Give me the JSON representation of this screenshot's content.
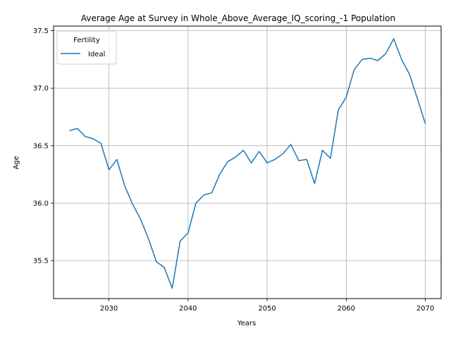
{
  "chart_data": {
    "type": "line",
    "title": "Average Age at Survey in Whole_Above_Average_IQ_scoring_-1 Population",
    "xlabel": "Years",
    "ylabel": "Age",
    "xlim": [
      2023,
      2072
    ],
    "ylim": [
      35.17,
      37.54
    ],
    "xticks": [
      2030,
      2040,
      2050,
      2060,
      2070
    ],
    "xtick_labels": [
      "2030",
      "2040",
      "2050",
      "2060",
      "2070"
    ],
    "yticks": [
      35.5,
      36.0,
      36.5,
      37.0,
      37.5
    ],
    "ytick_labels": [
      "35.5",
      "36.0",
      "36.5",
      "37.0",
      "37.5"
    ],
    "grid": true,
    "legend": {
      "title": "Fertility",
      "placement": "top-left"
    },
    "series": [
      {
        "name": "Ideal",
        "color": "#1f77b4",
        "x": [
          2025,
          2026,
          2027,
          2028,
          2029,
          2030,
          2031,
          2032,
          2033,
          2034,
          2035,
          2036,
          2037,
          2038,
          2039,
          2040,
          2041,
          2042,
          2043,
          2044,
          2045,
          2046,
          2047,
          2048,
          2049,
          2050,
          2051,
          2052,
          2053,
          2054,
          2055,
          2056,
          2057,
          2058,
          2059,
          2060,
          2061,
          2062,
          2063,
          2064,
          2065,
          2066,
          2067,
          2068,
          2069,
          2070
        ],
        "y": [
          36.63,
          36.65,
          36.58,
          36.56,
          36.52,
          36.29,
          36.38,
          36.15,
          35.99,
          35.86,
          35.69,
          35.49,
          35.44,
          35.26,
          35.67,
          35.74,
          36.0,
          36.07,
          36.09,
          36.25,
          36.36,
          36.4,
          36.46,
          36.35,
          36.45,
          36.35,
          36.38,
          36.43,
          36.51,
          36.37,
          36.38,
          36.17,
          36.46,
          36.39,
          36.81,
          36.92,
          37.16,
          37.25,
          37.26,
          37.24,
          37.3,
          37.43,
          37.25,
          37.12,
          36.91,
          36.69
        ]
      }
    ]
  }
}
